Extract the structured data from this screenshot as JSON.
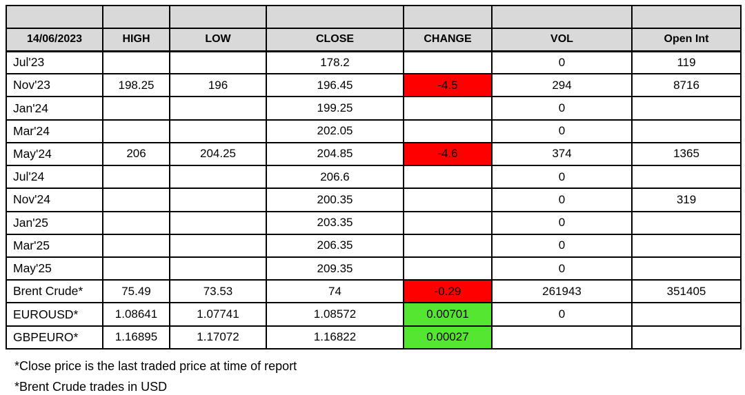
{
  "table": {
    "date_label": "14/06/2023",
    "columns": [
      "HIGH",
      "LOW",
      "CLOSE",
      "CHANGE",
      "VOL",
      "Open Int"
    ],
    "rows": [
      {
        "label": "Jul'23",
        "high": "",
        "low": "",
        "close": "178.2",
        "change": "",
        "change_bg": "",
        "vol": "0",
        "open_int": "119"
      },
      {
        "label": "Nov'23",
        "high": "198.25",
        "low": "196",
        "close": "196.45",
        "change": "-4.5",
        "change_bg": "negative",
        "vol": "294",
        "open_int": "8716"
      },
      {
        "label": "Jan'24",
        "high": "",
        "low": "",
        "close": "199.25",
        "change": "",
        "change_bg": "",
        "vol": "0",
        "open_int": ""
      },
      {
        "label": "Mar'24",
        "high": "",
        "low": "",
        "close": "202.05",
        "change": "",
        "change_bg": "",
        "vol": "0",
        "open_int": ""
      },
      {
        "label": "May'24",
        "high": "206",
        "low": "204.25",
        "close": "204.85",
        "change": "-4.6",
        "change_bg": "negative",
        "vol": "374",
        "open_int": "1365"
      },
      {
        "label": "Jul'24",
        "high": "",
        "low": "",
        "close": "206.6",
        "change": "",
        "change_bg": "",
        "vol": "0",
        "open_int": ""
      },
      {
        "label": "Nov'24",
        "high": "",
        "low": "",
        "close": "200.35",
        "change": "",
        "change_bg": "",
        "vol": "0",
        "open_int": "319"
      },
      {
        "label": "Jan'25",
        "high": "",
        "low": "",
        "close": "203.35",
        "change": "",
        "change_bg": "",
        "vol": "0",
        "open_int": ""
      },
      {
        "label": "Mar'25",
        "high": "",
        "low": "",
        "close": "206.35",
        "change": "",
        "change_bg": "",
        "vol": "0",
        "open_int": ""
      },
      {
        "label": "May'25",
        "high": "",
        "low": "",
        "close": "209.35",
        "change": "",
        "change_bg": "",
        "vol": "0",
        "open_int": ""
      },
      {
        "label": "Brent Crude*",
        "high": "75.49",
        "low": "73.53",
        "close": "74",
        "change": "-0.29",
        "change_bg": "negative",
        "vol": "261943",
        "open_int": "351405"
      },
      {
        "label": "EUROUSD*",
        "high": "1.08641",
        "low": "1.07741",
        "close": "1.08572",
        "change": "0.00701",
        "change_bg": "positive",
        "vol": "0",
        "open_int": ""
      },
      {
        "label": "GBPEURO*",
        "high": "1.16895",
        "low": "1.17072",
        "close": "1.16822",
        "change": "0.00027",
        "change_bg": "positive",
        "vol": "",
        "open_int": ""
      }
    ],
    "colors": {
      "header_bg": "#d9d9d9",
      "negative_bg": "#ff0000",
      "positive_bg": "#55e632",
      "border": "#000000"
    }
  },
  "footnotes": [
    "*Close price is the last traded price at time of report",
    "*Brent Crude trades in USD"
  ]
}
